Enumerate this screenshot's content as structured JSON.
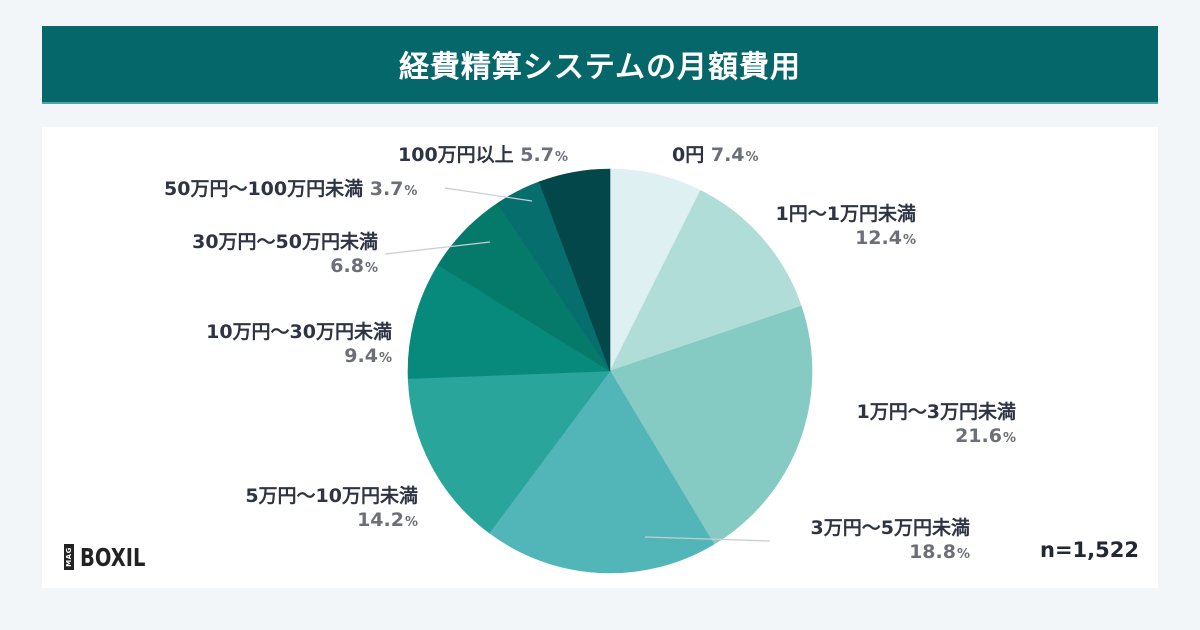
{
  "header": {
    "title": "経費精算システムの月額費用"
  },
  "footer": {
    "sample_size": "n=1,522",
    "logo_tag": "MAG",
    "logo_word": "BOXIL"
  },
  "chart_data": {
    "type": "pie",
    "title": "経費精算システムの月額費用",
    "sample_size": 1522,
    "unit": "%",
    "start_angle_deg": -90,
    "direction": "clockwise",
    "categories": [
      "0円",
      "1円〜1万円未満",
      "1万円〜3万円未満",
      "3万円〜5万円未満",
      "5万円〜10万円未満",
      "10万円〜30万円未満",
      "30万円〜50万円未満",
      "50万円〜100万円未満",
      "100万円以上"
    ],
    "values": [
      7.4,
      12.4,
      21.6,
      18.8,
      14.2,
      9.4,
      6.8,
      3.7,
      5.7
    ],
    "colors": [
      "#dff0f3",
      "#b1ddd8",
      "#85cbc3",
      "#52b6b8",
      "#29a59c",
      "#078a7c",
      "#067a6a",
      "#066e6d",
      "#04474a"
    ]
  },
  "labels": [
    {
      "name": "0円",
      "pct": "7.4"
    },
    {
      "name": "1円〜1万円未満",
      "pct": "12.4"
    },
    {
      "name": "1万円〜3万円未満",
      "pct": "21.6"
    },
    {
      "name": "3万円〜5万円未満",
      "pct": "18.8"
    },
    {
      "name": "5万円〜10万円未満",
      "pct": "14.2"
    },
    {
      "name": "10万円〜30万円未満",
      "pct": "9.4"
    },
    {
      "name": "30万円〜50万円未満",
      "pct": "6.8"
    },
    {
      "name": "50万円〜100万円未満",
      "pct": "3.7"
    },
    {
      "name": "100万円以上",
      "pct": "5.7"
    }
  ],
  "percent_sign": "%"
}
